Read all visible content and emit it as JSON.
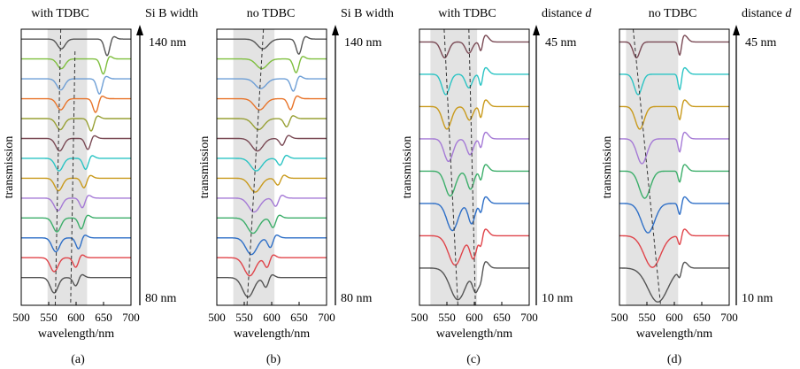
{
  "figure": {
    "panels": [
      {
        "label": "(a)",
        "title": "with TDBC",
        "ylabel": "transmission",
        "xlabel": "wavelength/nm",
        "xticks": [
          500,
          550,
          600,
          650,
          700
        ],
        "xlim": [
          500,
          700
        ],
        "shaded": [
          548,
          620
        ],
        "guides": [
          {
            "x": [
              572,
              562
            ],
            "y": [
              1,
              0
            ]
          },
          {
            "x": [
              598,
              590
            ],
            "y": [
              0.92,
              0
            ]
          }
        ],
        "param": {
          "name": "Si B width",
          "top": "140 nm",
          "bottom": "80 nm"
        },
        "curves": [
          {
            "color": "#555555",
            "dips": [
              [
                560,
                7,
                0.55
              ],
              [
                600,
                5,
                0.35
              ]
            ]
          },
          {
            "color": "#e0444a",
            "dips": [
              [
                560,
                7,
                0.5
              ],
              [
                600,
                5,
                0.4
              ]
            ]
          },
          {
            "color": "#2e6fc7",
            "dips": [
              [
                563,
                7,
                0.5
              ],
              [
                605,
                5,
                0.45
              ]
            ]
          },
          {
            "color": "#3cae6a",
            "dips": [
              [
                565,
                7,
                0.5
              ],
              [
                610,
                5,
                0.45
              ]
            ]
          },
          {
            "color": "#a57ad6",
            "dips": [
              [
                567,
                7,
                0.45
              ],
              [
                612,
                5,
                0.4
              ]
            ]
          },
          {
            "color": "#c99a1c",
            "dips": [
              [
                568,
                7,
                0.45
              ],
              [
                615,
                5,
                0.4
              ]
            ]
          },
          {
            "color": "#2bc4c4",
            "dips": [
              [
                569,
                7,
                0.45
              ],
              [
                618,
                5,
                0.45
              ]
            ]
          },
          {
            "color": "#7a4a55",
            "dips": [
              [
                570,
                7,
                0.45
              ],
              [
                622,
                5,
                0.45
              ]
            ]
          },
          {
            "color": "#98a035",
            "dips": [
              [
                571,
                7,
                0.4
              ],
              [
                628,
                5,
                0.5
              ]
            ]
          },
          {
            "color": "#e8742a",
            "dips": [
              [
                572,
                7,
                0.4
              ],
              [
                636,
                5,
                0.55
              ]
            ]
          },
          {
            "color": "#6e9fd6",
            "dips": [
              [
                572,
                7,
                0.4
              ],
              [
                643,
                5,
                0.6
              ]
            ]
          },
          {
            "color": "#7fbf3f",
            "dips": [
              [
                573,
                7,
                0.35
              ],
              [
                650,
                5,
                0.6
              ]
            ]
          },
          {
            "color": "#555555",
            "dips": [
              [
                573,
                7,
                0.35
              ],
              [
                657,
                5,
                0.65
              ]
            ]
          }
        ]
      },
      {
        "label": "(b)",
        "title": "no TDBC",
        "ylabel": "transmission",
        "xlabel": "wavelength/nm",
        "xticks": [
          500,
          550,
          600,
          650,
          700
        ],
        "xlim": [
          500,
          700
        ],
        "shaded": [
          530,
          605
        ],
        "guides": [
          {
            "x": [
              585,
              555
            ],
            "y": [
              1,
              0
            ]
          }
        ],
        "param": {
          "name": "Si B width",
          "top": "140 nm",
          "bottom": "80 nm"
        },
        "curves": [
          {
            "color": "#555555",
            "dips": [
              [
                557,
                10,
                0.7
              ],
              [
                590,
                5,
                0.4
              ]
            ]
          },
          {
            "color": "#e0444a",
            "dips": [
              [
                560,
                10,
                0.65
              ],
              [
                592,
                5,
                0.4
              ]
            ]
          },
          {
            "color": "#2e6fc7",
            "dips": [
              [
                563,
                10,
                0.6
              ],
              [
                598,
                5,
                0.4
              ]
            ]
          },
          {
            "color": "#3cae6a",
            "dips": [
              [
                566,
                10,
                0.55
              ],
              [
                603,
                5,
                0.4
              ]
            ]
          },
          {
            "color": "#a57ad6",
            "dips": [
              [
                568,
                10,
                0.5
              ],
              [
                608,
                5,
                0.35
              ]
            ]
          },
          {
            "color": "#c99a1c",
            "dips": [
              [
                570,
                10,
                0.5
              ],
              [
                612,
                5,
                0.3
              ]
            ]
          },
          {
            "color": "#2bc4c4",
            "dips": [
              [
                572,
                10,
                0.45
              ],
              [
                616,
                5,
                0.3
              ]
            ]
          },
          {
            "color": "#7a4a55",
            "dips": [
              [
                574,
                10,
                0.45
              ],
              [
                620,
                5,
                0.3
              ]
            ]
          },
          {
            "color": "#98a035",
            "dips": [
              [
                576,
                10,
                0.4
              ],
              [
                628,
                5,
                0.35
              ]
            ]
          },
          {
            "color": "#e8742a",
            "dips": [
              [
                578,
                10,
                0.4
              ],
              [
                635,
                5,
                0.45
              ]
            ]
          },
          {
            "color": "#6e9fd6",
            "dips": [
              [
                580,
                10,
                0.35
              ],
              [
                640,
                5,
                0.5
              ]
            ]
          },
          {
            "color": "#7fbf3f",
            "dips": [
              [
                582,
                10,
                0.35
              ],
              [
                645,
                5,
                0.55
              ]
            ]
          },
          {
            "color": "#555555",
            "dips": [
              [
                584,
                10,
                0.35
              ],
              [
                650,
                5,
                0.6
              ]
            ]
          }
        ]
      },
      {
        "label": "(c)",
        "title": "with TDBC",
        "ylabel": "transmission",
        "xlabel": "wavelength/nm",
        "xticks": [
          500,
          550,
          600,
          650,
          700
        ],
        "xlim": [
          500,
          700
        ],
        "shaded": [
          520,
          605
        ],
        "guides": [
          {
            "x": [
              545,
              570
            ],
            "y": [
              1,
              0
            ]
          },
          {
            "x": [
              590,
              602
            ],
            "y": [
              1,
              0
            ]
          }
        ],
        "param": {
          "name": "distance ",
          "name_italic": "d",
          "top": "45 nm",
          "bottom": "10 nm"
        },
        "curves": [
          {
            "color": "#555555",
            "dips": [
              [
                570,
                14,
                0.7
              ],
              [
                603,
                6,
                0.5
              ],
              [
                612,
                3,
                0.2
              ]
            ]
          },
          {
            "color": "#e0444a",
            "dips": [
              [
                565,
                12,
                0.65
              ],
              [
                598,
                6,
                0.5
              ],
              [
                612,
                3,
                0.25
              ]
            ]
          },
          {
            "color": "#2e6fc7",
            "dips": [
              [
                560,
                10,
                0.6
              ],
              [
                595,
                6,
                0.45
              ],
              [
                612,
                3,
                0.25
              ]
            ]
          },
          {
            "color": "#3cae6a",
            "dips": [
              [
                556,
                9,
                0.55
              ],
              [
                593,
                6,
                0.4
              ],
              [
                612,
                3,
                0.25
              ]
            ]
          },
          {
            "color": "#a57ad6",
            "dips": [
              [
                553,
                8,
                0.5
              ],
              [
                592,
                6,
                0.35
              ],
              [
                612,
                3,
                0.25
              ]
            ]
          },
          {
            "color": "#c99a1c",
            "dips": [
              [
                550,
                8,
                0.5
              ],
              [
                591,
                6,
                0.3
              ],
              [
                612,
                3,
                0.3
              ]
            ]
          },
          {
            "color": "#2bc4c4",
            "dips": [
              [
                548,
                7,
                0.45
              ],
              [
                590,
                6,
                0.3
              ],
              [
                612,
                3,
                0.3
              ]
            ]
          },
          {
            "color": "#7a4a55",
            "dips": [
              [
                546,
                7,
                0.35
              ],
              [
                590,
                6,
                0.25
              ],
              [
                612,
                3,
                0.25
              ]
            ]
          }
        ]
      },
      {
        "label": "(d)",
        "title": "no TDBC",
        "ylabel": "transmission",
        "xlabel": "wavelength/nm",
        "xticks": [
          500,
          550,
          600,
          650,
          700
        ],
        "xlim": [
          500,
          700
        ],
        "shaded": [
          512,
          607
        ],
        "guides": [
          {
            "x": [
              525,
              575
            ],
            "y": [
              1,
              0
            ]
          }
        ],
        "param": {
          "name": "distance ",
          "name_italic": "d",
          "top": "45 nm",
          "bottom": "10 nm"
        },
        "curves": [
          {
            "color": "#555555",
            "dips": [
              [
                570,
                18,
                0.75
              ],
              [
                610,
                3,
                0.2
              ]
            ]
          },
          {
            "color": "#e0444a",
            "dips": [
              [
                560,
                15,
                0.7
              ],
              [
                610,
                3,
                0.25
              ]
            ]
          },
          {
            "color": "#2e6fc7",
            "dips": [
              [
                552,
                12,
                0.65
              ],
              [
                610,
                3,
                0.3
              ]
            ]
          },
          {
            "color": "#3cae6a",
            "dips": [
              [
                546,
                10,
                0.6
              ],
              [
                610,
                3,
                0.3
              ]
            ]
          },
          {
            "color": "#a57ad6",
            "dips": [
              [
                541,
                9,
                0.55
              ],
              [
                610,
                3,
                0.35
              ]
            ]
          },
          {
            "color": "#c99a1c",
            "dips": [
              [
                537,
                8,
                0.5
              ],
              [
                610,
                3,
                0.35
              ]
            ]
          },
          {
            "color": "#2bc4c4",
            "dips": [
              [
                534,
                7,
                0.45
              ],
              [
                610,
                3,
                0.4
              ]
            ]
          },
          {
            "color": "#7a4a55",
            "dips": [
              [
                531,
                6,
                0.35
              ],
              [
                610,
                3,
                0.35
              ]
            ]
          }
        ]
      }
    ]
  }
}
